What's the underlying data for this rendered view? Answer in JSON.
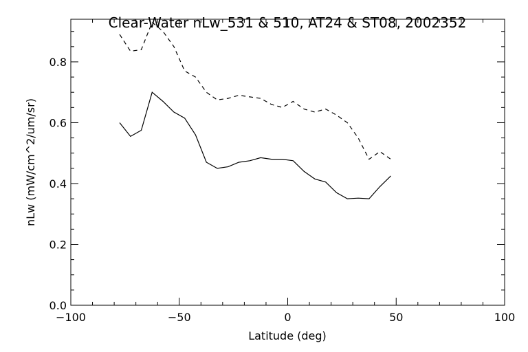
{
  "chart_data": {
    "type": "line",
    "title": "Clear-Water nLw_531 & 510, AT24 & ST08, 2002352",
    "xlabel": "Latitude (deg)",
    "ylabel": "nLw (mW/cm^2/um/sr)",
    "xlim": [
      -100,
      100
    ],
    "ylim": [
      0.0,
      0.94
    ],
    "xticks": [
      -100,
      -50,
      0,
      50,
      100
    ],
    "xtick_labels": [
      "−100",
      "−50",
      "0",
      "50",
      "100"
    ],
    "yticks": [
      0.0,
      0.2,
      0.4,
      0.6,
      0.8
    ],
    "ytick_labels": [
      "0.0",
      "0.2",
      "0.4",
      "0.6",
      "0.8"
    ],
    "grid": false,
    "legend": "none",
    "series": [
      {
        "style": "solid",
        "color": "#000000",
        "x": [
          -77.5,
          -72.5,
          -67.5,
          -62.5,
          -57.5,
          -52.5,
          -47.5,
          -42.5,
          -37.5,
          -32.5,
          -27.5,
          -22.5,
          -17.5,
          -12.5,
          -7.5,
          -2.5,
          2.5,
          7.5,
          12.5,
          17.5,
          22.5,
          27.5,
          32.5,
          37.5,
          42.5,
          47.5
        ],
        "y": [
          0.6,
          0.555,
          0.575,
          0.7,
          0.67,
          0.635,
          0.615,
          0.56,
          0.47,
          0.45,
          0.455,
          0.47,
          0.475,
          0.485,
          0.48,
          0.48,
          0.475,
          0.44,
          0.415,
          0.405,
          0.37,
          0.35,
          0.352,
          0.35,
          0.39,
          0.425
        ]
      },
      {
        "style": "dashed",
        "color": "#000000",
        "x": [
          -77.5,
          -72.5,
          -67.5,
          -62.5,
          -57.5,
          -52.5,
          -47.5,
          -42.5,
          -37.5,
          -32.5,
          -27.5,
          -22.5,
          -17.5,
          -12.5,
          -7.5,
          -2.5,
          2.5,
          7.5,
          12.5,
          17.5,
          22.5,
          27.5,
          32.5,
          37.5,
          42.5,
          47.5
        ],
        "y": [
          0.89,
          0.835,
          0.84,
          0.93,
          0.9,
          0.85,
          0.77,
          0.75,
          0.7,
          0.675,
          0.68,
          0.69,
          0.685,
          0.68,
          0.66,
          0.65,
          0.67,
          0.645,
          0.635,
          0.645,
          0.625,
          0.6,
          0.55,
          0.48,
          0.505,
          0.48
        ]
      }
    ]
  }
}
